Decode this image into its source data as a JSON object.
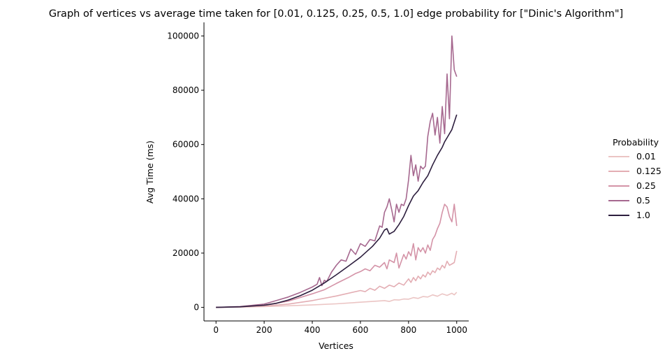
{
  "chart_data": {
    "type": "line",
    "title": "Graph of vertices vs average time taken for [0.01, 0.125, 0.25, 0.5, 1.0] edge probability for [\"Dinic's Algorithm\"]",
    "xlabel": "Vertices",
    "ylabel": "Avg Time (ms)",
    "xlim": [
      -50,
      1050
    ],
    "ylim": [
      -5000,
      105000
    ],
    "xticks": [
      0,
      200,
      400,
      600,
      800,
      1000
    ],
    "yticks": [
      0,
      20000,
      40000,
      60000,
      80000,
      100000
    ],
    "grid": false,
    "legend": {
      "title": "Probability",
      "placement": "right"
    },
    "series": [
      {
        "name": "0.01",
        "color": "#ebc5c4",
        "x": [
          0,
          100,
          200,
          300,
          400,
          500,
          600,
          700,
          720,
          740,
          760,
          780,
          800,
          820,
          840,
          860,
          880,
          900,
          920,
          940,
          960,
          980,
          990,
          1000
        ],
        "y": [
          0,
          100,
          300,
          600,
          900,
          1300,
          1900,
          2500,
          2200,
          2800,
          2700,
          3100,
          3000,
          3600,
          3300,
          4000,
          3800,
          4600,
          4100,
          5000,
          4400,
          5200,
          4600,
          5600
        ]
      },
      {
        "name": "0.125",
        "color": "#e3adb3",
        "x": [
          0,
          100,
          200,
          300,
          400,
          500,
          600,
          620,
          640,
          660,
          680,
          700,
          720,
          740,
          760,
          780,
          800,
          810,
          820,
          830,
          840,
          850,
          860,
          870,
          880,
          890,
          900,
          910,
          920,
          930,
          940,
          950,
          960,
          970,
          980,
          990,
          1000
        ],
        "y": [
          0,
          150,
          500,
          1200,
          2500,
          4200,
          6200,
          5800,
          7000,
          6300,
          7800,
          7000,
          8200,
          7600,
          9000,
          8200,
          10500,
          9200,
          11000,
          9800,
          11500,
          10500,
          12000,
          11200,
          13000,
          12000,
          13500,
          12800,
          14500,
          13800,
          15500,
          14500,
          17000,
          15500,
          16000,
          16500,
          20800
        ]
      },
      {
        "name": "0.25",
        "color": "#d493a7",
        "x": [
          0,
          100,
          200,
          300,
          400,
          450,
          500,
          550,
          580,
          600,
          620,
          640,
          660,
          680,
          700,
          710,
          720,
          740,
          750,
          760,
          780,
          790,
          800,
          810,
          820,
          830,
          840,
          850,
          860,
          870,
          880,
          890,
          900,
          910,
          920,
          930,
          940,
          950,
          960,
          970,
          980,
          990,
          1000
        ],
        "y": [
          0,
          200,
          800,
          2300,
          5000,
          6500,
          8800,
          11000,
          12500,
          13200,
          14200,
          13500,
          15500,
          14800,
          16500,
          14200,
          17500,
          16500,
          20000,
          14500,
          19500,
          17800,
          20500,
          19000,
          23500,
          17500,
          22000,
          20500,
          22000,
          20000,
          23000,
          21000,
          25000,
          26500,
          29000,
          31000,
          35000,
          38000,
          37000,
          33500,
          31500,
          38000,
          30000
        ]
      },
      {
        "name": "0.5",
        "color": "#a6688f",
        "x": [
          0,
          100,
          200,
          250,
          300,
          350,
          400,
          420,
          430,
          440,
          450,
          460,
          480,
          500,
          520,
          540,
          560,
          580,
          600,
          620,
          640,
          660,
          680,
          690,
          700,
          710,
          720,
          730,
          740,
          750,
          760,
          770,
          780,
          790,
          800,
          810,
          820,
          830,
          840,
          850,
          860,
          870,
          880,
          890,
          900,
          910,
          920,
          930,
          940,
          950,
          960,
          970,
          980,
          990,
          1000
        ],
        "y": [
          0,
          300,
          1200,
          2500,
          3800,
          5500,
          7500,
          8500,
          11000,
          8000,
          10000,
          9500,
          13000,
          15500,
          17500,
          17000,
          21500,
          19500,
          23500,
          22500,
          25000,
          24500,
          30000,
          29500,
          35000,
          37000,
          40000,
          36000,
          31500,
          38000,
          35000,
          38000,
          37500,
          40000,
          47000,
          56000,
          48500,
          52500,
          46500,
          52000,
          51000,
          52000,
          63000,
          68500,
          71500,
          63500,
          70000,
          60500,
          74000,
          64000,
          86000,
          69500,
          100000,
          87500,
          85000
        ]
      },
      {
        "name": "1.0",
        "color": "#2d1e3e",
        "x": [
          0,
          100,
          200,
          250,
          300,
          350,
          400,
          450,
          500,
          550,
          600,
          650,
          680,
          700,
          710,
          720,
          730,
          740,
          760,
          780,
          800,
          820,
          840,
          860,
          880,
          900,
          920,
          940,
          950,
          960,
          980,
          1000
        ],
        "y": [
          0,
          200,
          800,
          1500,
          2700,
          4300,
          6300,
          9000,
          12000,
          15200,
          18500,
          22500,
          25500,
          28500,
          29000,
          27000,
          27500,
          28000,
          30500,
          33500,
          37500,
          41000,
          43000,
          46000,
          48500,
          52500,
          56000,
          59000,
          61000,
          62500,
          65500,
          71000
        ]
      }
    ]
  }
}
